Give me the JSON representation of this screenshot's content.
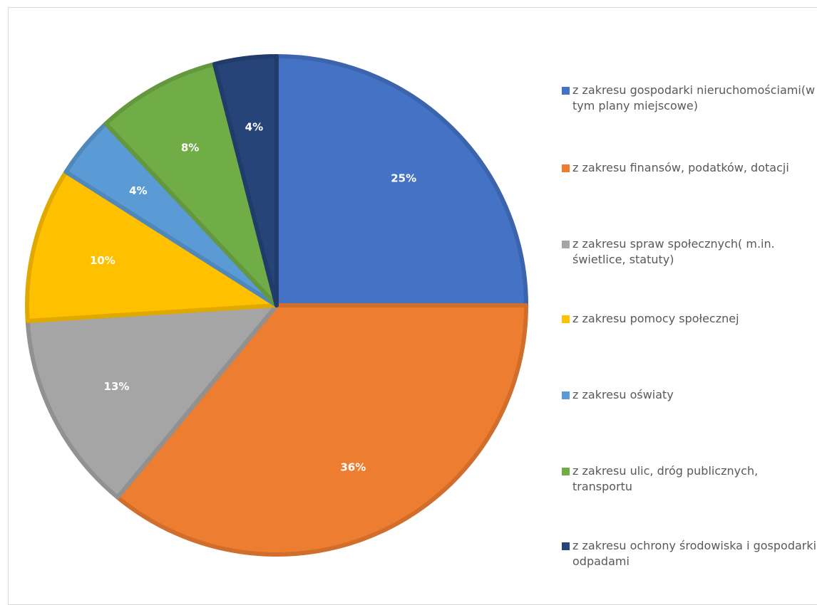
{
  "chart_data": {
    "type": "pie",
    "title": "",
    "slices": [
      {
        "label": "z zakresu gospodarki nieruchomościami(w tym plany miejscowe)",
        "value": 25,
        "display": "25%",
        "color": "#4472c4"
      },
      {
        "label": "z zakresu finansów, podatków, dotacji",
        "value": 36,
        "display": "36%",
        "color": "#ed7d31"
      },
      {
        "label": "z zakresu spraw społecznych( m.in. świetlice, statuty)",
        "value": 13,
        "display": "13%",
        "color": "#a5a5a5"
      },
      {
        "label": "z zakresu pomocy społecznej",
        "value": 10,
        "display": "10%",
        "color": "#ffc000"
      },
      {
        "label": "z zakresu oświaty",
        "value": 4,
        "display": "4%",
        "color": "#5b9bd5"
      },
      {
        "label": "z zakresu ulic, dróg publicznych, transportu",
        "value": 8,
        "display": "8%",
        "color": "#70ad47"
      },
      {
        "label": "z zakresu ochrony środowiska i gospodarki odpadami",
        "value": 4,
        "display": "4%",
        "color": "#264478"
      }
    ],
    "legend_position": "right",
    "data_labels": true
  }
}
